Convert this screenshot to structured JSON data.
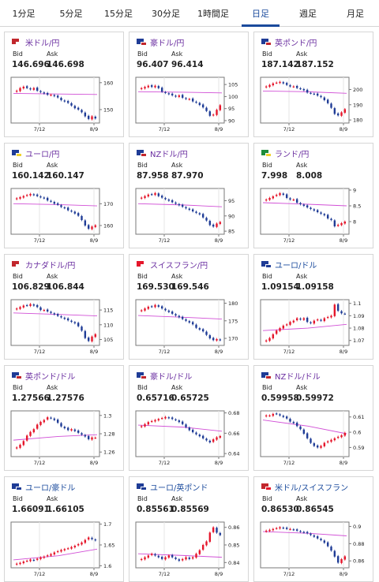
{
  "tabs": [
    {
      "label": "1分足",
      "active": false
    },
    {
      "label": "5分足",
      "active": false
    },
    {
      "label": "15分足",
      "active": false
    },
    {
      "label": "30分足",
      "active": false
    },
    {
      "label": "1時間足",
      "active": false
    },
    {
      "label": "日足",
      "active": true
    },
    {
      "label": "週足",
      "active": false
    },
    {
      "label": "月足",
      "active": false
    }
  ],
  "labels": {
    "bid": "Bid",
    "ask": "Ask"
  },
  "x_ticks": [
    "7/12",
    "8/9"
  ],
  "colors": {
    "up": "#e5162b",
    "down": "#1f3c96",
    "ma": "#d14fd6",
    "frame": "#7a7a7a",
    "tab_active": "#1a4a9c"
  },
  "cards": [
    {
      "pair": "米ドル/円",
      "flag": [
        "#c1272d",
        "#ffffff"
      ],
      "bid": "146.696",
      "ask": "146.698",
      "chart_data": {
        "type": "candlestick",
        "y_ticks": [
          160,
          150
        ],
        "ylim": [
          145,
          162
        ],
        "trend": [
          157,
          158,
          158.5,
          158,
          157.5,
          158,
          157,
          156.5,
          156,
          155.5,
          155.5,
          155,
          154.5,
          153.5,
          153,
          152.5,
          151.5,
          150.5,
          150,
          149,
          147.5,
          146.5,
          147.5,
          146.7
        ],
        "ma": [
          156,
          155.8,
          155.6
        ]
      }
    },
    {
      "pair": "豪ドル/円",
      "flag": [
        "#1f3c96",
        "#c1272d"
      ],
      "bid": "96.407",
      "ask": "96.414",
      "chart_data": {
        "type": "candlestick",
        "y_ticks": [
          105,
          100,
          95,
          90
        ],
        "ylim": [
          89,
          108
        ],
        "trend": [
          103.5,
          104,
          104.5,
          104,
          104.5,
          103.5,
          102,
          101.5,
          101,
          100.5,
          100,
          100.5,
          99.5,
          99,
          99,
          98,
          97.5,
          96.5,
          95.5,
          94,
          92,
          92.5,
          94.5,
          96.4
        ],
        "ma": [
          102,
          101.8,
          101.5
        ]
      }
    },
    {
      "pair": "英ポンド/円",
      "flag": [
        "#1f3c96",
        "#c1272d"
      ],
      "bid": "187.142",
      "ask": "187.152",
      "chart_data": {
        "type": "candlestick",
        "y_ticks": [
          200,
          190,
          180
        ],
        "ylim": [
          178,
          208
        ],
        "trend": [
          202,
          203,
          204,
          204.5,
          205,
          204,
          203,
          202,
          202,
          201,
          200.5,
          199.5,
          198,
          197.5,
          197,
          196,
          195,
          193,
          191,
          188,
          184,
          183,
          185,
          187.1
        ],
        "ma": [
          199,
          198.5,
          197.5
        ]
      }
    },
    {
      "pair": "ユーロ/円",
      "flag": [
        "#1f3c96",
        "#f2d22e"
      ],
      "bid": "160.142",
      "ask": "160.147",
      "chart_data": {
        "type": "candlestick",
        "y_ticks": [
          170,
          160
        ],
        "ylim": [
          156,
          177
        ],
        "trend": [
          172.5,
          173,
          173.5,
          174,
          174.5,
          174,
          173.5,
          173,
          172.5,
          171.5,
          171,
          170,
          169.5,
          168.5,
          168,
          167,
          166.5,
          165.5,
          164.5,
          162.5,
          160,
          158.5,
          159.5,
          160.1
        ],
        "ma": [
          170,
          169.6,
          169
        ]
      }
    },
    {
      "pair": "NZドル/円",
      "flag": [
        "#1f3c96",
        "#c1272d"
      ],
      "bid": "87.958",
      "ask": "87.970",
      "chart_data": {
        "type": "candlestick",
        "y_ticks": [
          95,
          90,
          85
        ],
        "ylim": [
          84,
          99
        ],
        "trend": [
          96,
          96.5,
          97,
          97,
          97.5,
          96.5,
          96,
          95.5,
          95,
          94.5,
          94,
          93.5,
          93,
          92.5,
          92,
          91.5,
          91,
          90.5,
          89.5,
          88.5,
          87,
          86.5,
          87.5,
          88
        ],
        "ma": [
          94,
          93.6,
          93
        ]
      }
    },
    {
      "pair": "ランド/円",
      "flag": [
        "#1e8c3a",
        "#f2d22e"
      ],
      "bid": "7.998",
      "ask": "8.008",
      "chart_data": {
        "type": "candlestick",
        "y_ticks": [
          9,
          8.5,
          8
        ],
        "ylim": [
          7.6,
          9.05
        ],
        "trend": [
          8.7,
          8.75,
          8.8,
          8.85,
          8.9,
          8.85,
          8.75,
          8.7,
          8.7,
          8.6,
          8.55,
          8.5,
          8.45,
          8.4,
          8.35,
          8.3,
          8.25,
          8.2,
          8.1,
          8.05,
          7.85,
          7.9,
          7.95,
          8
        ],
        "ma": [
          8.6,
          8.55,
          8.5
        ]
      }
    },
    {
      "pair": "カナダドル/円",
      "flag": [
        "#c1272d",
        "#ffffff"
      ],
      "bid": "106.829",
      "ask": "106.844",
      "chart_data": {
        "type": "candlestick",
        "y_ticks": [
          115,
          110,
          105
        ],
        "ylim": [
          103,
          118.5
        ],
        "trend": [
          115.5,
          116,
          116.5,
          116.5,
          117,
          116.5,
          116,
          115,
          115,
          114.5,
          114,
          113.5,
          113,
          112.5,
          112,
          111.5,
          111,
          110.5,
          109.5,
          108,
          105.5,
          104.5,
          106,
          106.8
        ],
        "ma": [
          114,
          113.5,
          113
        ]
      }
    },
    {
      "pair": "スイスフラン/円",
      "flag": [
        "#e5162b",
        "#ffffff"
      ],
      "bid": "169.530",
      "ask": "169.546",
      "chart_data": {
        "type": "candlestick",
        "y_ticks": [
          180,
          175,
          170
        ],
        "ylim": [
          168,
          181
        ],
        "trend": [
          178,
          178.5,
          179,
          179,
          179.5,
          179,
          178.5,
          178,
          177.5,
          177,
          176.5,
          176,
          175.5,
          175,
          174.5,
          174,
          173,
          172.5,
          172,
          171,
          170,
          169.5,
          169.8,
          169.5
        ],
        "ma": [
          176.5,
          176,
          175.5
        ]
      }
    },
    {
      "pair": "ユーロ/ドル",
      "flag": [
        "#1f3c96",
        "#1f3c96"
      ],
      "bid": "1.09154",
      "ask": "1.09158",
      "chart_data": {
        "type": "candlestick",
        "y_ticks": [
          1.1,
          1.09,
          1.08,
          1.07
        ],
        "ylim": [
          1.066,
          1.103
        ],
        "trend": [
          1.07,
          1.072,
          1.075,
          1.078,
          1.08,
          1.082,
          1.083,
          1.085,
          1.086,
          1.088,
          1.087,
          1.088,
          1.085,
          1.084,
          1.086,
          1.087,
          1.086,
          1.088,
          1.089,
          1.09,
          1.099,
          1.094,
          1.092,
          1.0915
        ],
        "ma": [
          1.078,
          1.08,
          1.083
        ]
      }
    },
    {
      "pair": "英ポンド/ドル",
      "flag": [
        "#1f3c96",
        "#c1272d"
      ],
      "bid": "1.27566",
      "ask": "1.27576",
      "chart_data": {
        "type": "candlestick",
        "y_ticks": [
          1.3,
          1.28,
          1.26
        ],
        "ylim": [
          1.255,
          1.305
        ],
        "trend": [
          1.265,
          1.268,
          1.272,
          1.278,
          1.282,
          1.285,
          1.29,
          1.293,
          1.295,
          1.298,
          1.297,
          1.295,
          1.292,
          1.288,
          1.286,
          1.284,
          1.285,
          1.283,
          1.281,
          1.279,
          1.277,
          1.274,
          1.276,
          1.2757
        ],
        "ma": [
          1.273,
          1.277,
          1.279
        ]
      }
    },
    {
      "pair": "豪ドル/ドル",
      "flag": [
        "#1f3c96",
        "#c1272d"
      ],
      "bid": "0.65716",
      "ask": "0.65725",
      "chart_data": {
        "type": "candlestick",
        "y_ticks": [
          0.68,
          0.66,
          0.64
        ],
        "ylim": [
          0.637,
          0.682
        ],
        "trend": [
          0.667,
          0.669,
          0.671,
          0.672,
          0.673,
          0.674,
          0.675,
          0.676,
          0.675,
          0.674,
          0.673,
          0.671,
          0.669,
          0.666,
          0.663,
          0.661,
          0.659,
          0.657,
          0.655,
          0.653,
          0.651,
          0.654,
          0.656,
          0.6572
        ],
        "ma": [
          0.668,
          0.666,
          0.662
        ]
      }
    },
    {
      "pair": "NZドル/ドル",
      "flag": [
        "#1f3c96",
        "#c1272d"
      ],
      "bid": "0.59958",
      "ask": "0.59972",
      "chart_data": {
        "type": "candlestick",
        "y_ticks": [
          0.61,
          0.6,
          0.59
        ],
        "ylim": [
          0.584,
          0.614
        ],
        "trend": [
          0.611,
          0.611,
          0.612,
          0.612,
          0.611,
          0.61,
          0.609,
          0.607,
          0.606,
          0.604,
          0.602,
          0.599,
          0.596,
          0.593,
          0.591,
          0.59,
          0.591,
          0.593,
          0.594,
          0.595,
          0.596,
          0.597,
          0.598,
          0.5996
        ],
        "ma": [
          0.608,
          0.604,
          0.599
        ]
      }
    },
    {
      "pair": "ユーロ/豪ドル",
      "flag": [
        "#1f3c96",
        "#1f3c96"
      ],
      "bid": "1.66091",
      "ask": "1.66105",
      "chart_data": {
        "type": "candlestick",
        "y_ticks": [
          1.7,
          1.65,
          1.6
        ],
        "ylim": [
          1.595,
          1.705
        ],
        "trend": [
          1.605,
          1.607,
          1.61,
          1.612,
          1.615,
          1.613,
          1.617,
          1.62,
          1.622,
          1.625,
          1.628,
          1.632,
          1.635,
          1.638,
          1.64,
          1.642,
          1.645,
          1.648,
          1.652,
          1.656,
          1.662,
          1.668,
          1.664,
          1.661
        ],
        "ma": [
          1.614,
          1.624,
          1.64
        ]
      }
    },
    {
      "pair": "ユーロ/英ポンド",
      "flag": [
        "#1f3c96",
        "#1f3c96"
      ],
      "bid": "0.85561",
      "ask": "0.85569",
      "chart_data": {
        "type": "candlestick",
        "y_ticks": [
          0.86,
          0.85,
          0.84
        ],
        "ylim": [
          0.837,
          0.863
        ],
        "trend": [
          0.842,
          0.843,
          0.844,
          0.845,
          0.844,
          0.843,
          0.842,
          0.843,
          0.844,
          0.843,
          0.842,
          0.841,
          0.842,
          0.843,
          0.842,
          0.843,
          0.845,
          0.847,
          0.85,
          0.852,
          0.857,
          0.86,
          0.857,
          0.8556
        ],
        "ma": [
          0.845,
          0.844,
          0.843
        ]
      }
    },
    {
      "pair": "米ドル/スイスフラン",
      "flag": [
        "#c1272d",
        "#e5162b"
      ],
      "bid": "0.86530",
      "ask": "0.86545",
      "chart_data": {
        "type": "candlestick",
        "y_ticks": [
          0.9,
          0.88,
          0.86
        ],
        "ylim": [
          0.852,
          0.905
        ],
        "trend": [
          0.895,
          0.896,
          0.897,
          0.898,
          0.899,
          0.898,
          0.897,
          0.897,
          0.896,
          0.895,
          0.894,
          0.893,
          0.892,
          0.89,
          0.888,
          0.886,
          0.884,
          0.881,
          0.877,
          0.872,
          0.865,
          0.858,
          0.862,
          0.8653
        ],
        "ma": [
          0.894,
          0.892,
          0.889
        ]
      }
    }
  ]
}
